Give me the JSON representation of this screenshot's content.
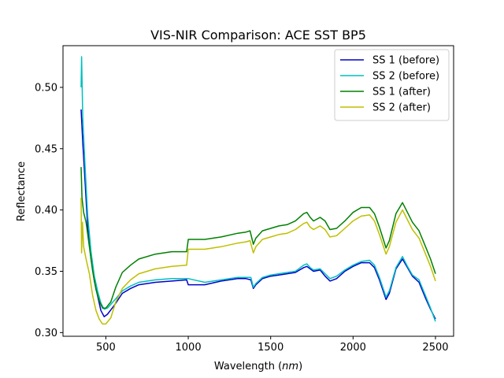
{
  "chart_data": {
    "type": "line",
    "title": "VIS-NIR Comparison: ACE SST BP5",
    "xlabel_prefix": "Wavelength (",
    "xlabel_unit": "nm",
    "xlabel_suffix": ")",
    "ylabel": "Reflectance",
    "xlim": [
      240,
      2610
    ],
    "ylim": [
      0.297,
      0.534
    ],
    "xticks": [
      500,
      1000,
      1500,
      2000,
      2500
    ],
    "yticks": [
      0.3,
      0.35,
      0.4,
      0.45,
      0.5
    ],
    "ytick_labels": [
      "0.30",
      "0.35",
      "0.40",
      "0.45",
      "0.50"
    ],
    "grid": false,
    "legend_position": "top-right",
    "series": [
      {
        "name": "SS 1 (before)",
        "color": "#0000cc",
        "points": [
          [
            350,
            0.482
          ],
          [
            360,
            0.455
          ],
          [
            375,
            0.42
          ],
          [
            390,
            0.385
          ],
          [
            410,
            0.36
          ],
          [
            430,
            0.342
          ],
          [
            450,
            0.33
          ],
          [
            470,
            0.318
          ],
          [
            490,
            0.313
          ],
          [
            510,
            0.315
          ],
          [
            550,
            0.322
          ],
          [
            600,
            0.332
          ],
          [
            650,
            0.336
          ],
          [
            700,
            0.339
          ],
          [
            800,
            0.341
          ],
          [
            900,
            0.342
          ],
          [
            990,
            0.343
          ],
          [
            1000,
            0.339
          ],
          [
            1100,
            0.339
          ],
          [
            1200,
            0.342
          ],
          [
            1300,
            0.344
          ],
          [
            1350,
            0.344
          ],
          [
            1380,
            0.343
          ],
          [
            1395,
            0.336
          ],
          [
            1410,
            0.339
          ],
          [
            1450,
            0.344
          ],
          [
            1500,
            0.346
          ],
          [
            1550,
            0.347
          ],
          [
            1600,
            0.348
          ],
          [
            1650,
            0.349
          ],
          [
            1700,
            0.353
          ],
          [
            1720,
            0.354
          ],
          [
            1740,
            0.352
          ],
          [
            1760,
            0.35
          ],
          [
            1800,
            0.351
          ],
          [
            1830,
            0.346
          ],
          [
            1860,
            0.342
          ],
          [
            1900,
            0.344
          ],
          [
            1950,
            0.35
          ],
          [
            2000,
            0.354
          ],
          [
            2050,
            0.357
          ],
          [
            2100,
            0.357
          ],
          [
            2130,
            0.353
          ],
          [
            2160,
            0.343
          ],
          [
            2200,
            0.327
          ],
          [
            2220,
            0.332
          ],
          [
            2260,
            0.352
          ],
          [
            2300,
            0.36
          ],
          [
            2330,
            0.353
          ],
          [
            2360,
            0.346
          ],
          [
            2400,
            0.341
          ],
          [
            2440,
            0.328
          ],
          [
            2470,
            0.319
          ],
          [
            2500,
            0.311
          ]
        ]
      },
      {
        "name": "SS 2 (before)",
        "color": "#00bfbf",
        "points": [
          [
            350,
            0.5
          ],
          [
            353,
            0.525
          ],
          [
            360,
            0.475
          ],
          [
            375,
            0.432
          ],
          [
            390,
            0.395
          ],
          [
            410,
            0.366
          ],
          [
            430,
            0.346
          ],
          [
            450,
            0.334
          ],
          [
            470,
            0.324
          ],
          [
            490,
            0.319
          ],
          [
            510,
            0.32
          ],
          [
            550,
            0.326
          ],
          [
            600,
            0.334
          ],
          [
            650,
            0.338
          ],
          [
            700,
            0.341
          ],
          [
            800,
            0.343
          ],
          [
            900,
            0.344
          ],
          [
            1000,
            0.344
          ],
          [
            1100,
            0.341
          ],
          [
            1200,
            0.343
          ],
          [
            1300,
            0.345
          ],
          [
            1350,
            0.345
          ],
          [
            1380,
            0.345
          ],
          [
            1395,
            0.337
          ],
          [
            1410,
            0.34
          ],
          [
            1450,
            0.345
          ],
          [
            1500,
            0.347
          ],
          [
            1550,
            0.348
          ],
          [
            1600,
            0.349
          ],
          [
            1650,
            0.35
          ],
          [
            1700,
            0.355
          ],
          [
            1720,
            0.356
          ],
          [
            1740,
            0.353
          ],
          [
            1760,
            0.351
          ],
          [
            1800,
            0.352
          ],
          [
            1830,
            0.348
          ],
          [
            1860,
            0.344
          ],
          [
            1900,
            0.346
          ],
          [
            1950,
            0.351
          ],
          [
            2000,
            0.355
          ],
          [
            2050,
            0.358
          ],
          [
            2100,
            0.359
          ],
          [
            2130,
            0.355
          ],
          [
            2160,
            0.345
          ],
          [
            2200,
            0.329
          ],
          [
            2220,
            0.334
          ],
          [
            2260,
            0.353
          ],
          [
            2300,
            0.362
          ],
          [
            2330,
            0.354
          ],
          [
            2360,
            0.347
          ],
          [
            2400,
            0.343
          ],
          [
            2440,
            0.33
          ],
          [
            2470,
            0.32
          ],
          [
            2500,
            0.309
          ]
        ]
      },
      {
        "name": "SS 1 (after)",
        "color": "#008000",
        "points": [
          [
            350,
            0.435
          ],
          [
            355,
            0.41
          ],
          [
            365,
            0.398
          ],
          [
            380,
            0.39
          ],
          [
            400,
            0.37
          ],
          [
            420,
            0.35
          ],
          [
            440,
            0.335
          ],
          [
            460,
            0.326
          ],
          [
            480,
            0.32
          ],
          [
            500,
            0.32
          ],
          [
            530,
            0.325
          ],
          [
            560,
            0.337
          ],
          [
            600,
            0.349
          ],
          [
            650,
            0.355
          ],
          [
            700,
            0.36
          ],
          [
            800,
            0.364
          ],
          [
            900,
            0.366
          ],
          [
            990,
            0.366
          ],
          [
            1000,
            0.376
          ],
          [
            1100,
            0.376
          ],
          [
            1200,
            0.378
          ],
          [
            1300,
            0.381
          ],
          [
            1350,
            0.382
          ],
          [
            1375,
            0.383
          ],
          [
            1395,
            0.372
          ],
          [
            1410,
            0.377
          ],
          [
            1450,
            0.383
          ],
          [
            1500,
            0.385
          ],
          [
            1550,
            0.387
          ],
          [
            1600,
            0.388
          ],
          [
            1650,
            0.391
          ],
          [
            1700,
            0.397
          ],
          [
            1720,
            0.398
          ],
          [
            1740,
            0.394
          ],
          [
            1760,
            0.391
          ],
          [
            1800,
            0.394
          ],
          [
            1830,
            0.391
          ],
          [
            1860,
            0.384
          ],
          [
            1900,
            0.385
          ],
          [
            1950,
            0.391
          ],
          [
            2000,
            0.398
          ],
          [
            2050,
            0.402
          ],
          [
            2100,
            0.402
          ],
          [
            2130,
            0.397
          ],
          [
            2160,
            0.386
          ],
          [
            2200,
            0.369
          ],
          [
            2220,
            0.375
          ],
          [
            2260,
            0.397
          ],
          [
            2300,
            0.406
          ],
          [
            2330,
            0.398
          ],
          [
            2360,
            0.39
          ],
          [
            2400,
            0.383
          ],
          [
            2440,
            0.37
          ],
          [
            2470,
            0.36
          ],
          [
            2500,
            0.348
          ]
        ]
      },
      {
        "name": "SS 2 (after)",
        "color": "#bfbf00",
        "points": [
          [
            350,
            0.41
          ],
          [
            353,
            0.365
          ],
          [
            358,
            0.39
          ],
          [
            365,
            0.37
          ],
          [
            380,
            0.36
          ],
          [
            400,
            0.348
          ],
          [
            420,
            0.33
          ],
          [
            440,
            0.318
          ],
          [
            460,
            0.311
          ],
          [
            480,
            0.307
          ],
          [
            500,
            0.307
          ],
          [
            530,
            0.312
          ],
          [
            560,
            0.325
          ],
          [
            600,
            0.336
          ],
          [
            650,
            0.343
          ],
          [
            700,
            0.348
          ],
          [
            800,
            0.352
          ],
          [
            900,
            0.354
          ],
          [
            990,
            0.355
          ],
          [
            1000,
            0.368
          ],
          [
            1100,
            0.368
          ],
          [
            1200,
            0.37
          ],
          [
            1300,
            0.373
          ],
          [
            1350,
            0.374
          ],
          [
            1375,
            0.375
          ],
          [
            1395,
            0.365
          ],
          [
            1410,
            0.37
          ],
          [
            1450,
            0.376
          ],
          [
            1500,
            0.378
          ],
          [
            1550,
            0.38
          ],
          [
            1600,
            0.381
          ],
          [
            1650,
            0.384
          ],
          [
            1700,
            0.389
          ],
          [
            1720,
            0.39
          ],
          [
            1740,
            0.386
          ],
          [
            1760,
            0.384
          ],
          [
            1800,
            0.387
          ],
          [
            1830,
            0.384
          ],
          [
            1860,
            0.378
          ],
          [
            1900,
            0.379
          ],
          [
            1950,
            0.385
          ],
          [
            2000,
            0.391
          ],
          [
            2050,
            0.395
          ],
          [
            2100,
            0.396
          ],
          [
            2130,
            0.391
          ],
          [
            2160,
            0.38
          ],
          [
            2200,
            0.364
          ],
          [
            2220,
            0.37
          ],
          [
            2260,
            0.39
          ],
          [
            2300,
            0.4
          ],
          [
            2330,
            0.392
          ],
          [
            2360,
            0.384
          ],
          [
            2400,
            0.377
          ],
          [
            2440,
            0.364
          ],
          [
            2470,
            0.354
          ],
          [
            2500,
            0.342
          ]
        ]
      }
    ]
  }
}
